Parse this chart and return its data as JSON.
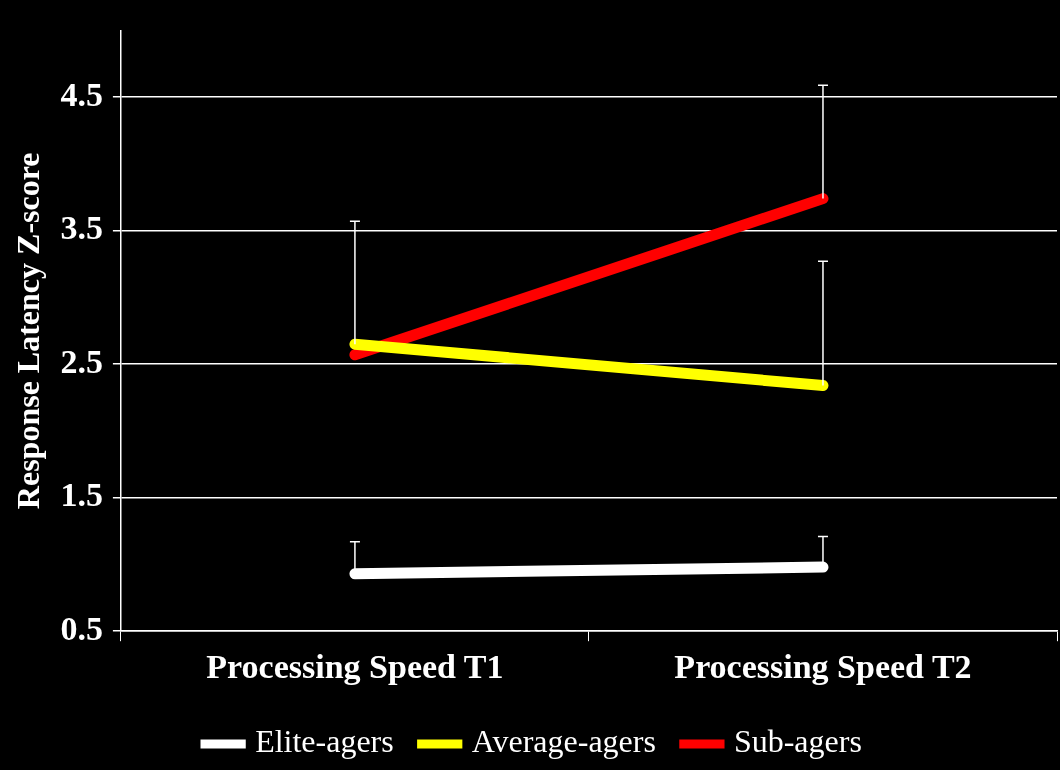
{
  "chart_data": {
    "type": "line",
    "ylabel": "Response Latency Z-score",
    "categories": [
      "Processing Speed T1",
      "Processing Speed T2"
    ],
    "series": [
      {
        "name": "Elite-agers",
        "color": "#ffffff",
        "values": [
          0.93,
          0.98
        ],
        "errors": [
          [
            0.93,
            1.17
          ],
          [
            0.98,
            1.21
          ]
        ]
      },
      {
        "name": "Average-agers",
        "color": "#ffff00",
        "values": [
          2.65,
          2.34
        ],
        "errors": [
          [
            2.65,
            3.57
          ],
          [
            2.34,
            3.27
          ]
        ]
      },
      {
        "name": "Sub-agers",
        "color": "#ff0000",
        "values": [
          2.57,
          3.74
        ],
        "errors": [
          null,
          [
            3.74,
            4.59
          ]
        ]
      }
    ],
    "ylim": [
      0.5,
      5.0
    ],
    "yticks": [
      0.5,
      1.5,
      2.5,
      3.5,
      4.5
    ],
    "grid": "y",
    "legend": "bottom",
    "marker": "none",
    "line_style": "solid"
  }
}
